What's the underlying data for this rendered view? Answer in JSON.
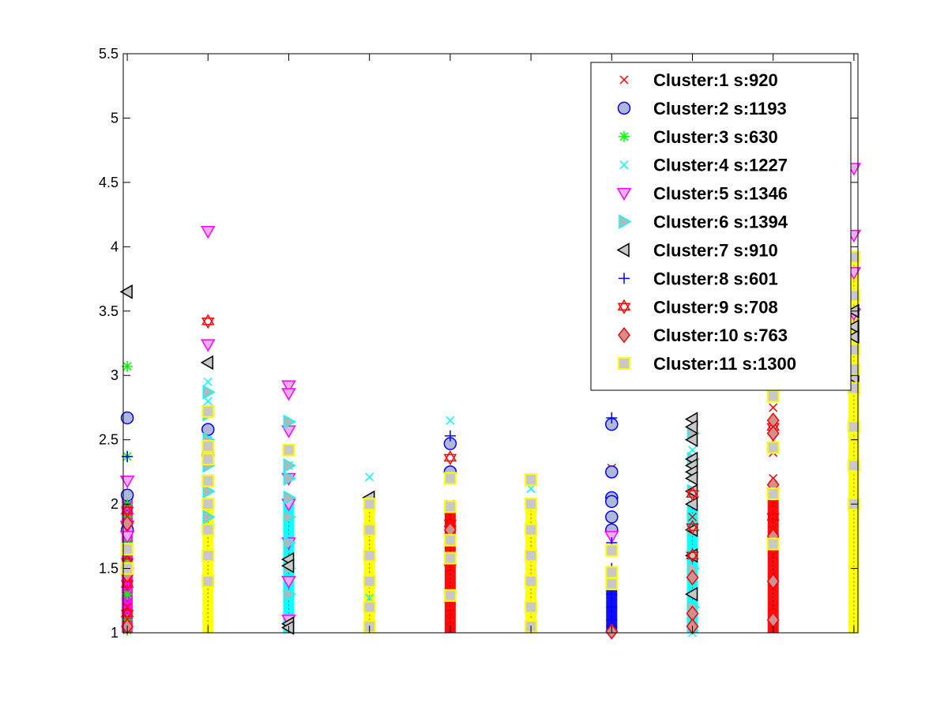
{
  "chart_data": {
    "type": "scatter",
    "title": "",
    "xlabel": "",
    "ylabel": "",
    "xlim": [
      0.95,
      10.05
    ],
    "ylim": [
      1,
      5.5
    ],
    "yticks": [
      1,
      1.5,
      2,
      2.5,
      3,
      3.5,
      4,
      4.5,
      5,
      5.5
    ],
    "ytick_labels": [
      "1",
      "1.5",
      "2",
      "2.5",
      "3",
      "3.5",
      "4",
      "4.5",
      "5",
      "5.5"
    ],
    "xticks": [],
    "grid": false,
    "legend_position": "top-right",
    "columns": [
      1,
      2,
      3,
      4,
      5,
      6,
      7,
      8,
      9,
      10
    ],
    "series": [
      {
        "name": "Cluster:1 s:920",
        "marker": "x",
        "color": "#ff0000",
        "fill": "none",
        "points": [
          [
            1,
            1.03
          ],
          [
            1,
            1.08
          ],
          [
            1,
            1.12
          ],
          [
            1,
            1.2
          ],
          [
            1,
            1.3
          ],
          [
            1,
            1.45
          ],
          [
            1,
            1.6
          ],
          [
            1,
            1.9
          ],
          [
            5,
            1.05
          ],
          [
            5,
            1.15
          ],
          [
            5,
            1.3
          ],
          [
            5,
            1.5
          ],
          [
            5,
            1.7
          ],
          [
            5,
            2.0
          ],
          [
            7,
            2.28
          ],
          [
            8,
            1.9
          ],
          [
            9,
            1.05
          ],
          [
            9,
            1.2
          ],
          [
            9,
            1.4
          ],
          [
            9,
            1.6
          ],
          [
            9,
            1.8
          ],
          [
            9,
            2.0
          ],
          [
            9,
            2.2
          ],
          [
            9,
            2.4
          ],
          [
            9,
            2.6
          ],
          [
            9,
            2.75
          ]
        ]
      },
      {
        "name": "Cluster:2 s:1193",
        "marker": "o",
        "color": "#0000ff",
        "fill": "#b0b8d8",
        "points": [
          [
            1,
            2.67
          ],
          [
            1,
            2.07
          ],
          [
            1,
            1.8
          ],
          [
            1,
            1.5
          ],
          [
            2,
            2.58
          ],
          [
            2,
            2.38
          ],
          [
            5,
            2.47
          ],
          [
            5,
            2.25
          ],
          [
            7,
            2.62
          ],
          [
            7,
            2.25
          ],
          [
            7,
            2.05
          ],
          [
            7,
            2.02
          ],
          [
            7,
            1.9
          ],
          [
            7,
            1.8
          ]
        ]
      },
      {
        "name": "Cluster:3 s:630",
        "marker": "*",
        "color": "#00ff00",
        "fill": "none",
        "points": [
          [
            1,
            3.07
          ],
          [
            1,
            2.37
          ],
          [
            1,
            2.0
          ],
          [
            1,
            1.9
          ],
          [
            1,
            1.7
          ],
          [
            1,
            1.55
          ],
          [
            1,
            1.3
          ],
          [
            1,
            1.1
          ],
          [
            1,
            1.02
          ]
        ]
      },
      {
        "name": "Cluster:4 s:1227",
        "marker": "x",
        "color": "#00ffff",
        "fill": "none",
        "points": [
          [
            2,
            2.95
          ],
          [
            2,
            2.8
          ],
          [
            2,
            2.5
          ],
          [
            2,
            2.2
          ],
          [
            3,
            2.3
          ],
          [
            3,
            2.0
          ],
          [
            3,
            1.7
          ],
          [
            3,
            1.4
          ],
          [
            3,
            1.1
          ],
          [
            4,
            2.21
          ],
          [
            4,
            1.27
          ],
          [
            5,
            2.65
          ],
          [
            6,
            2.12
          ],
          [
            8,
            2.42
          ],
          [
            8,
            2.2
          ],
          [
            8,
            2.0
          ],
          [
            8,
            1.7
          ],
          [
            8,
            1.4
          ],
          [
            8,
            1.1
          ],
          [
            8,
            1.0
          ]
        ]
      },
      {
        "name": "Cluster:5 s:1346",
        "marker": "v",
        "color": "#ff00ff",
        "fill": "#e8b0e8",
        "points": [
          [
            1,
            2.18
          ],
          [
            1,
            1.83
          ],
          [
            1,
            1.75
          ],
          [
            2,
            4.12
          ],
          [
            2,
            3.24
          ],
          [
            3,
            2.92
          ],
          [
            3,
            2.86
          ],
          [
            3,
            2.57
          ],
          [
            3,
            2.2
          ],
          [
            3,
            2.0
          ],
          [
            3,
            1.7
          ],
          [
            3,
            1.4
          ],
          [
            3,
            1.1
          ],
          [
            7,
            1.75
          ],
          [
            10,
            4.61
          ],
          [
            10,
            4.09
          ],
          [
            10,
            3.8
          ],
          [
            10,
            3.48
          ]
        ]
      },
      {
        "name": "Cluster:6 s:1394",
        "marker": ">",
        "color": "#00ffff",
        "fill": "#b0b8b8",
        "points": [
          [
            2,
            2.87
          ],
          [
            2,
            2.7
          ],
          [
            2,
            2.5
          ],
          [
            2,
            2.3
          ],
          [
            2,
            2.1
          ],
          [
            2,
            1.9
          ],
          [
            3,
            2.64
          ],
          [
            3,
            2.3
          ],
          [
            3,
            2.2
          ],
          [
            3,
            2.05
          ],
          [
            3,
            1.9
          ],
          [
            3,
            1.7
          ],
          [
            3,
            1.5
          ],
          [
            3,
            1.3
          ],
          [
            8,
            2.55
          ],
          [
            8,
            2.35
          ],
          [
            8,
            2.1
          ],
          [
            8,
            1.8
          ],
          [
            8,
            1.5
          ],
          [
            8,
            1.2
          ]
        ]
      },
      {
        "name": "Cluster:7 s:910",
        "marker": "<",
        "color": "#000000",
        "fill": "#c8c8c8",
        "points": [
          [
            1,
            3.65
          ],
          [
            2,
            3.1
          ],
          [
            3,
            1.57
          ],
          [
            3,
            1.52
          ],
          [
            3,
            1.07
          ],
          [
            3,
            1.04
          ],
          [
            4,
            2.05
          ],
          [
            8,
            2.66
          ],
          [
            8,
            2.6
          ],
          [
            8,
            2.5
          ],
          [
            8,
            2.35
          ],
          [
            8,
            2.3
          ],
          [
            8,
            2.25
          ],
          [
            8,
            2.2
          ],
          [
            8,
            2.1
          ],
          [
            8,
            2.0
          ],
          [
            8,
            1.8
          ],
          [
            8,
            1.6
          ],
          [
            8,
            1.3
          ],
          [
            10,
            3.5
          ],
          [
            10,
            3.38
          ],
          [
            10,
            3.3
          ],
          [
            10,
            2.98
          ]
        ]
      },
      {
        "name": "Cluster:8 s:601",
        "marker": "+",
        "color": "#0000ff",
        "fill": "none",
        "points": [
          [
            1,
            2.37
          ],
          [
            5,
            2.53
          ],
          [
            7,
            2.67
          ],
          [
            7,
            1.7
          ],
          [
            7,
            1.5
          ],
          [
            7,
            1.3
          ],
          [
            7,
            1.2
          ],
          [
            7,
            1.1
          ],
          [
            7,
            1.05
          ]
        ]
      },
      {
        "name": "Cluster:9 s:708",
        "marker": "hexagram",
        "color": "#ff0000",
        "fill": "none",
        "points": [
          [
            1,
            1.95
          ],
          [
            1,
            1.55
          ],
          [
            1,
            1.38
          ],
          [
            1,
            1.15
          ],
          [
            2,
            3.42
          ],
          [
            5,
            2.36
          ],
          [
            5,
            1.85
          ],
          [
            5,
            1.55
          ],
          [
            8,
            2.08
          ],
          [
            8,
            1.82
          ],
          [
            8,
            1.6
          ],
          [
            9,
            2.6
          ],
          [
            9,
            2.45
          ],
          [
            9,
            2.1
          ],
          [
            9,
            1.9
          ]
        ]
      },
      {
        "name": "Cluster:10 s:763",
        "marker": "d",
        "color": "#ff0000",
        "fill": "#d09090",
        "points": [
          [
            1,
            1.85
          ],
          [
            1,
            1.45
          ],
          [
            1,
            1.05
          ],
          [
            5,
            1.8
          ],
          [
            7,
            1.01
          ],
          [
            8,
            1.43
          ],
          [
            8,
            1.15
          ],
          [
            8,
            1.05
          ],
          [
            9,
            2.65
          ],
          [
            9,
            2.55
          ],
          [
            9,
            2.15
          ],
          [
            9,
            1.75
          ],
          [
            9,
            1.4
          ],
          [
            9,
            1.1
          ]
        ]
      },
      {
        "name": "Cluster:11 s:1300",
        "marker": "s",
        "color": "#ffff00",
        "fill": "#c8c8c8",
        "points": [
          [
            1,
            1.65
          ],
          [
            1,
            1.5
          ],
          [
            2,
            2.72
          ],
          [
            2,
            2.45
          ],
          [
            2,
            2.35
          ],
          [
            2,
            2.18
          ],
          [
            2,
            2.0
          ],
          [
            2,
            1.8
          ],
          [
            2,
            1.6
          ],
          [
            2,
            1.4
          ],
          [
            3,
            2.42
          ],
          [
            4,
            2.0
          ],
          [
            4,
            1.8
          ],
          [
            4,
            1.6
          ],
          [
            4,
            1.4
          ],
          [
            4,
            1.2
          ],
          [
            4,
            1.05
          ],
          [
            5,
            2.2
          ],
          [
            5,
            1.98
          ],
          [
            5,
            1.72
          ],
          [
            5,
            1.58
          ],
          [
            5,
            1.29
          ],
          [
            6,
            2.19
          ],
          [
            6,
            2.0
          ],
          [
            6,
            1.8
          ],
          [
            6,
            1.6
          ],
          [
            6,
            1.4
          ],
          [
            6,
            1.2
          ],
          [
            6,
            1.05
          ],
          [
            7,
            1.64
          ],
          [
            7,
            1.47
          ],
          [
            7,
            1.38
          ],
          [
            9,
            2.84
          ],
          [
            9,
            2.44
          ],
          [
            9,
            2.08
          ],
          [
            9,
            1.69
          ],
          [
            10,
            3.92
          ],
          [
            10,
            3.62
          ],
          [
            10,
            3.2
          ],
          [
            10,
            3.05
          ],
          [
            10,
            2.9
          ],
          [
            10,
            2.6
          ],
          [
            10,
            2.3
          ],
          [
            10,
            2.0
          ]
        ]
      }
    ],
    "column_fill": [
      {
        "x": 1,
        "base": 1,
        "top": 2.05,
        "color": "#ff00ff"
      },
      {
        "x": 2,
        "base": 1,
        "top": 2.05,
        "color": "#ffff00"
      },
      {
        "x": 3,
        "base": 1,
        "top": 2.05,
        "color": "#00ffff"
      },
      {
        "x": 4,
        "base": 1,
        "top": 2.0,
        "color": "#ffff00"
      },
      {
        "x": 5,
        "base": 1,
        "top": 1.95,
        "color": "#ff0000"
      },
      {
        "x": 6,
        "base": 1,
        "top": 2.05,
        "color": "#ffff00"
      },
      {
        "x": 7,
        "base": 1,
        "top": 1.35,
        "color": "#0000ff"
      },
      {
        "x": 8,
        "base": 1,
        "top": 2.0,
        "color": "#00ffff"
      },
      {
        "x": 9,
        "base": 1,
        "top": 2.05,
        "color": "#ff0000"
      },
      {
        "x": 10,
        "base": 1,
        "top": 3.95,
        "color": "#ffff00"
      }
    ]
  }
}
